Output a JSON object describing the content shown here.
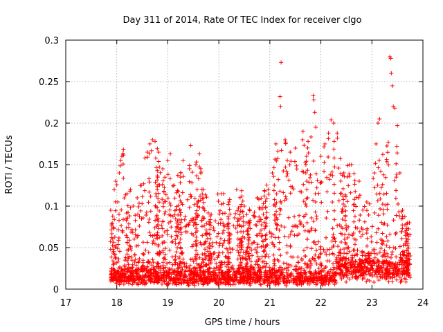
{
  "chart_data": {
    "type": "scatter",
    "title": "Day 311 of 2014, Rate Of TEC Index for receiver clgo",
    "xlabel": "GPS time / hours",
    "ylabel": "ROTI / TECUs",
    "xlim": [
      17,
      24
    ],
    "ylim": [
      0,
      0.3
    ],
    "xticks": [
      17,
      18,
      19,
      20,
      21,
      22,
      23,
      24
    ],
    "yticks": [
      0,
      0.05,
      0.1,
      0.15,
      0.2,
      0.25,
      0.3
    ],
    "xtick_labels": [
      "17",
      "18",
      "19",
      "20",
      "21",
      "22",
      "23",
      "24"
    ],
    "ytick_labels": [
      "0",
      "0.05",
      "0.1",
      "0.15",
      "0.2",
      "0.25",
      "0.3"
    ],
    "grid": true,
    "marker": "+",
    "color": "#ff0000",
    "point_count": 2600,
    "x_range_of_data": [
      17.88,
      23.75
    ],
    "series": [
      {
        "name": "ROTI",
        "points": [
          [
            17.88,
            0.095
          ],
          [
            17.92,
            0.088
          ],
          [
            17.95,
            0.12
          ],
          [
            17.98,
            0.13
          ],
          [
            18.02,
            0.105
          ],
          [
            18.05,
            0.14
          ],
          [
            18.08,
            0.155
          ],
          [
            18.1,
            0.16
          ],
          [
            18.13,
            0.168
          ],
          [
            18.2,
            0.115
          ],
          [
            18.27,
            0.12
          ],
          [
            18.32,
            0.1
          ],
          [
            18.4,
            0.11
          ],
          [
            18.48,
            0.125
          ],
          [
            18.55,
            0.158
          ],
          [
            18.6,
            0.165
          ],
          [
            18.65,
            0.175
          ],
          [
            18.7,
            0.18
          ],
          [
            18.75,
            0.178
          ],
          [
            18.82,
            0.165
          ],
          [
            18.9,
            0.145
          ],
          [
            19.0,
            0.155
          ],
          [
            19.05,
            0.163
          ],
          [
            19.12,
            0.125
          ],
          [
            19.25,
            0.14
          ],
          [
            19.3,
            0.155
          ],
          [
            19.45,
            0.173
          ],
          [
            19.55,
            0.15
          ],
          [
            19.62,
            0.163
          ],
          [
            19.7,
            0.12
          ],
          [
            19.85,
            0.09
          ],
          [
            20.05,
            0.115
          ],
          [
            20.2,
            0.105
          ],
          [
            20.35,
            0.12
          ],
          [
            20.5,
            0.1
          ],
          [
            20.75,
            0.11
          ],
          [
            20.9,
            0.118
          ],
          [
            21.05,
            0.14
          ],
          [
            21.12,
            0.175
          ],
          [
            21.2,
            0.232
          ],
          [
            21.21,
            0.22
          ],
          [
            21.22,
            0.273
          ],
          [
            21.3,
            0.18
          ],
          [
            21.4,
            0.165
          ],
          [
            21.5,
            0.17
          ],
          [
            21.65,
            0.19
          ],
          [
            21.75,
            0.178
          ],
          [
            21.85,
            0.233
          ],
          [
            21.86,
            0.228
          ],
          [
            21.88,
            0.213
          ],
          [
            21.9,
            0.195
          ],
          [
            22.0,
            0.16
          ],
          [
            22.08,
            0.175
          ],
          [
            22.15,
            0.188
          ],
          [
            22.2,
            0.204
          ],
          [
            22.25,
            0.2
          ],
          [
            22.32,
            0.188
          ],
          [
            22.45,
            0.14
          ],
          [
            22.6,
            0.15
          ],
          [
            22.75,
            0.13
          ],
          [
            22.9,
            0.105
          ],
          [
            23.05,
            0.14
          ],
          [
            23.08,
            0.175
          ],
          [
            23.12,
            0.2
          ],
          [
            23.15,
            0.205
          ],
          [
            23.35,
            0.28
          ],
          [
            23.37,
            0.278
          ],
          [
            23.38,
            0.26
          ],
          [
            23.4,
            0.245
          ],
          [
            23.42,
            0.22
          ],
          [
            23.45,
            0.218
          ],
          [
            23.5,
            0.197
          ],
          [
            23.55,
            0.14
          ],
          [
            23.6,
            0.095
          ],
          [
            23.7,
            0.08
          ]
        ],
        "dense_band": {
          "x": [
            17.88,
            23.75
          ],
          "y": [
            0.003,
            0.04
          ]
        }
      }
    ]
  }
}
